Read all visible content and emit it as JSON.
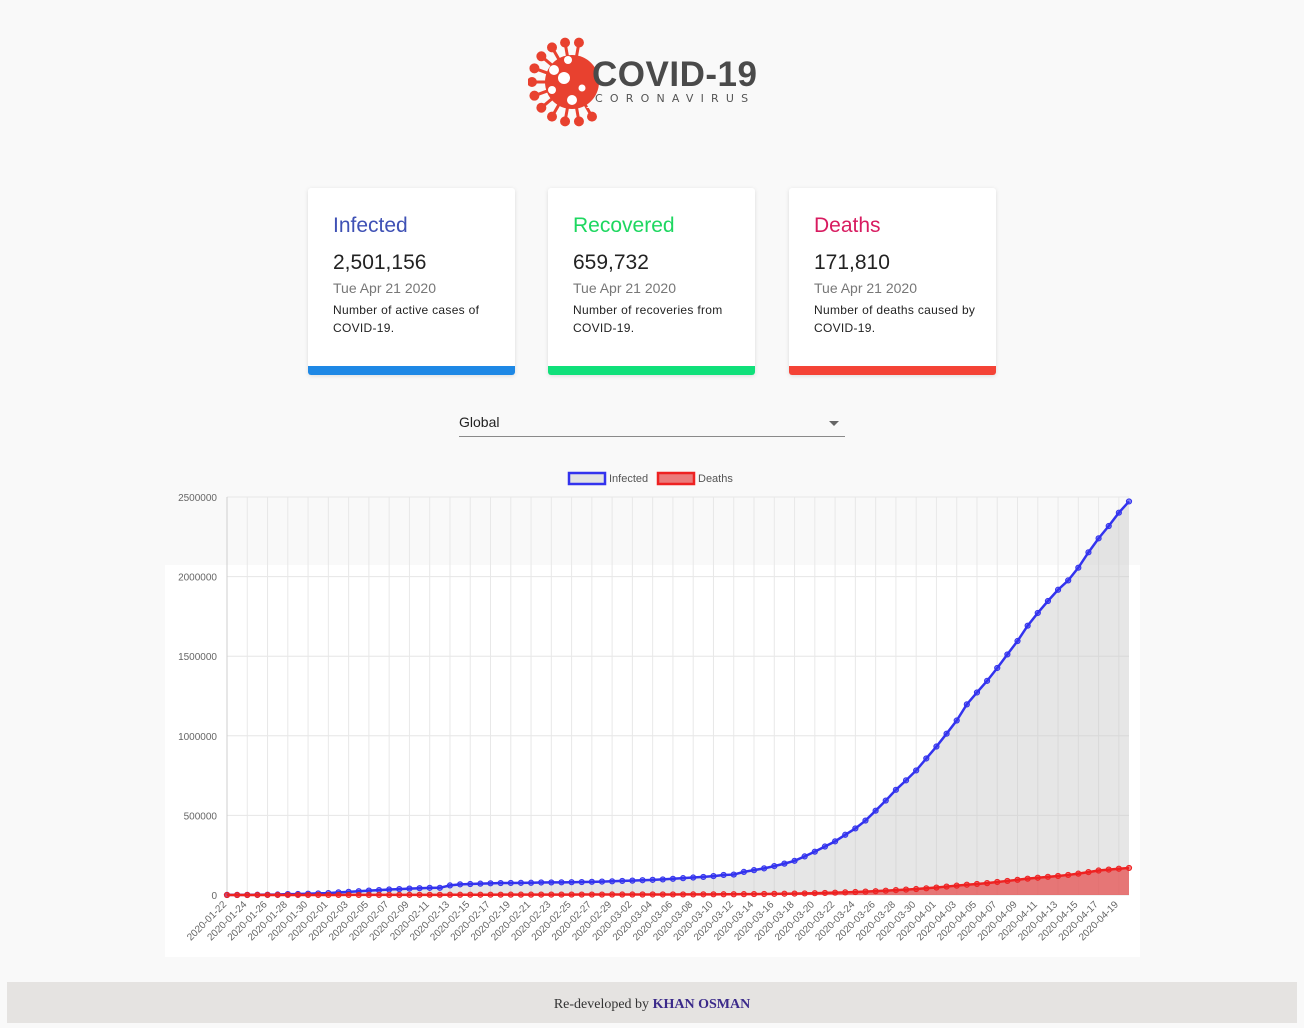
{
  "logo": {
    "title": "COVID-19",
    "subtitle": "CORONAVIRUS",
    "icon": "virus-icon",
    "color": "#e8412f"
  },
  "cards": [
    {
      "title": "Infected",
      "value": "2,501,156",
      "date": "Tue Apr 21 2020",
      "desc": "Number of active cases of COVID-19.",
      "color": "#3f51b5",
      "bar_color": "#1e88e5"
    },
    {
      "title": "Recovered",
      "value": "659,732",
      "date": "Tue Apr 21 2020",
      "desc": "Number of recoveries from COVID-19.",
      "color": "#1ed760",
      "bar_color": "#10e07a"
    },
    {
      "title": "Deaths",
      "value": "171,810",
      "date": "Tue Apr 21 2020",
      "desc": "Number of deaths caused by COVID-19.",
      "color": "#d81b60",
      "bar_color": "#f44336"
    }
  ],
  "country_select": {
    "selected": "Global"
  },
  "chart_data": {
    "type": "line",
    "legend_position": "top",
    "grid": true,
    "ylim": [
      0,
      2500000
    ],
    "yticks": [
      0,
      500000,
      1000000,
      1500000,
      2000000,
      2500000
    ],
    "x": [
      "2020-01-22",
      "2020-01-23",
      "2020-01-24",
      "2020-01-25",
      "2020-01-26",
      "2020-01-27",
      "2020-01-28",
      "2020-01-29",
      "2020-01-30",
      "2020-01-31",
      "2020-02-01",
      "2020-02-02",
      "2020-02-03",
      "2020-02-04",
      "2020-02-05",
      "2020-02-06",
      "2020-02-07",
      "2020-02-08",
      "2020-02-09",
      "2020-02-10",
      "2020-02-11",
      "2020-02-12",
      "2020-02-13",
      "2020-02-14",
      "2020-02-15",
      "2020-02-16",
      "2020-02-17",
      "2020-02-18",
      "2020-02-19",
      "2020-02-20",
      "2020-02-21",
      "2020-02-22",
      "2020-02-23",
      "2020-02-24",
      "2020-02-25",
      "2020-02-26",
      "2020-02-27",
      "2020-02-28",
      "2020-02-29",
      "2020-03-01",
      "2020-03-02",
      "2020-03-03",
      "2020-03-04",
      "2020-03-05",
      "2020-03-06",
      "2020-03-07",
      "2020-03-08",
      "2020-03-09",
      "2020-03-10",
      "2020-03-11",
      "2020-03-12",
      "2020-03-13",
      "2020-03-14",
      "2020-03-15",
      "2020-03-16",
      "2020-03-17",
      "2020-03-18",
      "2020-03-19",
      "2020-03-20",
      "2020-03-21",
      "2020-03-22",
      "2020-03-23",
      "2020-03-24",
      "2020-03-25",
      "2020-03-26",
      "2020-03-27",
      "2020-03-28",
      "2020-03-29",
      "2020-03-30",
      "2020-03-31",
      "2020-04-01",
      "2020-04-02",
      "2020-04-03",
      "2020-04-04",
      "2020-04-05",
      "2020-04-06",
      "2020-04-07",
      "2020-04-08",
      "2020-04-09",
      "2020-04-10",
      "2020-04-11",
      "2020-04-12",
      "2020-04-13",
      "2020-04-14",
      "2020-04-15",
      "2020-04-16",
      "2020-04-17",
      "2020-04-18",
      "2020-04-19",
      "2020-04-20"
    ],
    "series": [
      {
        "name": "Infected",
        "color": "#3333ee",
        "fill": "rgba(200,200,200,0.45)",
        "values": [
          555,
          654,
          941,
          1434,
          2118,
          2927,
          5578,
          6166,
          8234,
          9927,
          12038,
          16787,
          19881,
          23892,
          27635,
          30794,
          34391,
          37120,
          40150,
          42762,
          44802,
          45221,
          60368,
          66885,
          69030,
          71224,
          73258,
          75136,
          75639,
          76197,
          76819,
          78572,
          78958,
          79561,
          80406,
          81388,
          82746,
          84112,
          86011,
          88369,
          90306,
          92840,
          95120,
          97886,
          101801,
          105847,
          109821,
          113590,
          118620,
          125875,
          128352,
          145205,
          156101,
          167454,
          181574,
          197102,
          214821,
          242570,
          272208,
          304507,
          336953,
          378235,
          418045,
          467653,
          529591,
          593291,
          660706,
          720117,
          782365,
          857487,
          932605,
          1013157,
          1095917,
          1197405,
          1272115,
          1345101,
          1426096,
          1511104,
          1595350,
          1691719,
          1771514,
          1846680,
          1917320,
          1976191,
          2056054,
          2152437,
          2240190,
          2317759,
          2401378,
          2472259
        ]
      },
      {
        "name": "Deaths",
        "color": "#ee2222",
        "fill": "rgba(230,80,80,0.75)",
        "values": [
          17,
          18,
          26,
          42,
          56,
          82,
          131,
          133,
          171,
          213,
          259,
          362,
          426,
          492,
          564,
          634,
          719,
          806,
          906,
          1013,
          1113,
          1118,
          1371,
          1523,
          1666,
          1770,
          1868,
          2007,
          2122,
          2247,
          2251,
          2458,
          2469,
          2629,
          2708,
          2770,
          2814,
          2872,
          2941,
          2996,
          3085,
          3160,
          3254,
          3348,
          3460,
          3558,
          3802,
          3988,
          4262,
          4615,
          4720,
          5404,
          5819,
          6440,
          7126,
          7905,
          8733,
          9867,
          11299,
          12973,
          14623,
          16497,
          18615,
          21181,
          23970,
          27198,
          30652,
          33925,
          37582,
          42107,
          46809,
          52983,
          58787,
          64606,
          69374,
          74565,
          81865,
          88338,
          95455,
          102525,
          108502,
          114090,
          119482,
          125984,
          134177,
          143800,
          153822,
          159510,
          165044,
          170000
        ]
      }
    ]
  },
  "footer": {
    "prefix": "Re-developed by",
    "author": "KHAN OSMAN"
  }
}
